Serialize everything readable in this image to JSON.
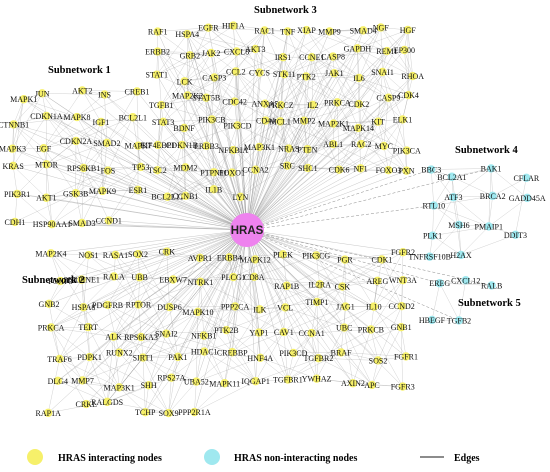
{
  "hub": {
    "label": "HRAS",
    "color": "#ee82ee"
  },
  "colors": {
    "interacting": "#f6f06a",
    "non_interacting": "#9fe8ef",
    "edge": "#8a8a8a"
  },
  "subnetworks": [
    {
      "title": "Subnetwork 1",
      "interacting": true,
      "nodes": [
        "MAPK1",
        "JUN",
        "AKT2",
        "INS",
        "CREB1",
        "CTNNB1",
        "CDKN1A",
        "MAPK8",
        "IGF1",
        "BCL2L1",
        "MAPK3",
        "EGF",
        "CDKN2A",
        "SMAD2",
        "MAPK7",
        "KRAS",
        "MTOR",
        "RPS6KB1",
        "FOS",
        "TP53",
        "PIK3R1",
        "AKT1",
        "GSK3B",
        "MAPK9",
        "ESR1",
        "CDH1",
        "HSP90AA1",
        "SMAD3",
        "CCND1"
      ]
    },
    {
      "title": "Subnetwork 3",
      "interacting": true,
      "nodes": [
        "RAF1",
        "HSPA4",
        "EGFR",
        "HIF1A",
        "RAC1",
        "TNF",
        "XIAP",
        "MMP9",
        "SMAD4",
        "NGF",
        "HGF",
        "ERBB2",
        "GRB2",
        "JAK2",
        "CXCL8",
        "AKT3",
        "IRS1",
        "CCNE1",
        "CASP8",
        "GAPDH",
        "REM1",
        "EP300",
        "STAT1",
        "LCK",
        "CASP3",
        "CCL2",
        "CYCS",
        "STK11",
        "PTK2",
        "JAK1",
        "IL6",
        "SNAI1",
        "RHOA",
        "TGFB1",
        "MAP2K2",
        "STAT5B",
        "CDC42",
        "ANXA5",
        "PRKCZ",
        "IL2",
        "PRKCA",
        "CDK2",
        "CASP9",
        "CDK4",
        "STAT3",
        "BDNF",
        "PIK3CB",
        "PIK3CD",
        "CD44",
        "MCL1",
        "MMP2",
        "MAP2K1",
        "MAPK14",
        "KIT",
        "ELK1",
        "EIF4EBP1",
        "CDKN1B",
        "ERBB3",
        "NFKBIA",
        "MAP3K1",
        "NRAS",
        "PTEN",
        "ABL1",
        "RAC2",
        "MYC",
        "PIK3CA",
        "TSC2",
        "MDM2",
        "PTPN11",
        "FOXO1",
        "CCNA2",
        "SRC",
        "SHC1",
        "CDK6",
        "NF1",
        "FOXO3",
        "PXN",
        "BCL2L11",
        "CCNB1",
        "IL1B",
        "LYN"
      ]
    },
    {
      "title": "Subnetwork 4",
      "interacting": false,
      "nodes": [
        "BBC3",
        "BCL2A1",
        "BAK1",
        "CFLAR",
        "RTL10",
        "ATF3",
        "BRCA2",
        "GADD45A",
        "PLK1",
        "MSH6",
        "PMAIP1",
        "DDIT3",
        "TNFRSF10B",
        "H2AX"
      ]
    },
    {
      "title": "Subnetwork 2",
      "interacting": true,
      "nodes": [
        "MAP2K4",
        "NOS1",
        "RASA1",
        "SOX2",
        "CRK",
        "AVPR1",
        "ERBB4",
        "MAPK12",
        "PLEK",
        "PIK3CG",
        "PGR",
        "CDK1",
        "FGFR2",
        "FOXP3",
        "SERPINE1",
        "RALA",
        "UBB",
        "EBXW7",
        "NTRK1",
        "PLCG1",
        "CD8A",
        "RAP1B",
        "IL2RA",
        "CSK",
        "AREG",
        "WNT3A",
        "GNB2",
        "HSPA8",
        "PDGFRB",
        "RPTOR",
        "DUSP6",
        "MAPK10",
        "PPP2CA",
        "ILK",
        "VCL",
        "TIMP1",
        "JAG1",
        "IL10",
        "CCND2",
        "PRKCA",
        "TERT",
        "ALK",
        "RPS6KA3",
        "SNAI2",
        "NFKB1",
        "PTK2B",
        "YAP1",
        "CAV1",
        "CCNA1",
        "UBC",
        "PRKCB",
        "GNB1",
        "TRAF6",
        "PDPK1",
        "RUNX2",
        "SIRT1",
        "PAK1",
        "HDAC1",
        "CREBBP",
        "HNF4A",
        "PIK3CD",
        "TGFBR2",
        "BRAF",
        "SOS2",
        "FGFR1",
        "DLG4",
        "MMP7",
        "MAP3K1",
        "SHH",
        "RPS27A",
        "UBA52",
        "MAPK11",
        "IQGAP1",
        "TGFBR1",
        "YWHAZ",
        "AXIN2",
        "APC",
        "FGFR3",
        "RAP1A",
        "CRKL",
        "RALGDS",
        "TCHP",
        "SOX9",
        "PPP2R1A"
      ]
    },
    {
      "title": "Subnetwork 5",
      "interacting": false,
      "nodes": [
        "EREG",
        "CXCL12",
        "RALB",
        "HBEGF",
        "TGFB2"
      ]
    }
  ],
  "legend": {
    "interacting_label": "HRAS interacting nodes",
    "non_interacting_label": "HRAS non-interacting nodes",
    "edges_label": "Edges"
  }
}
